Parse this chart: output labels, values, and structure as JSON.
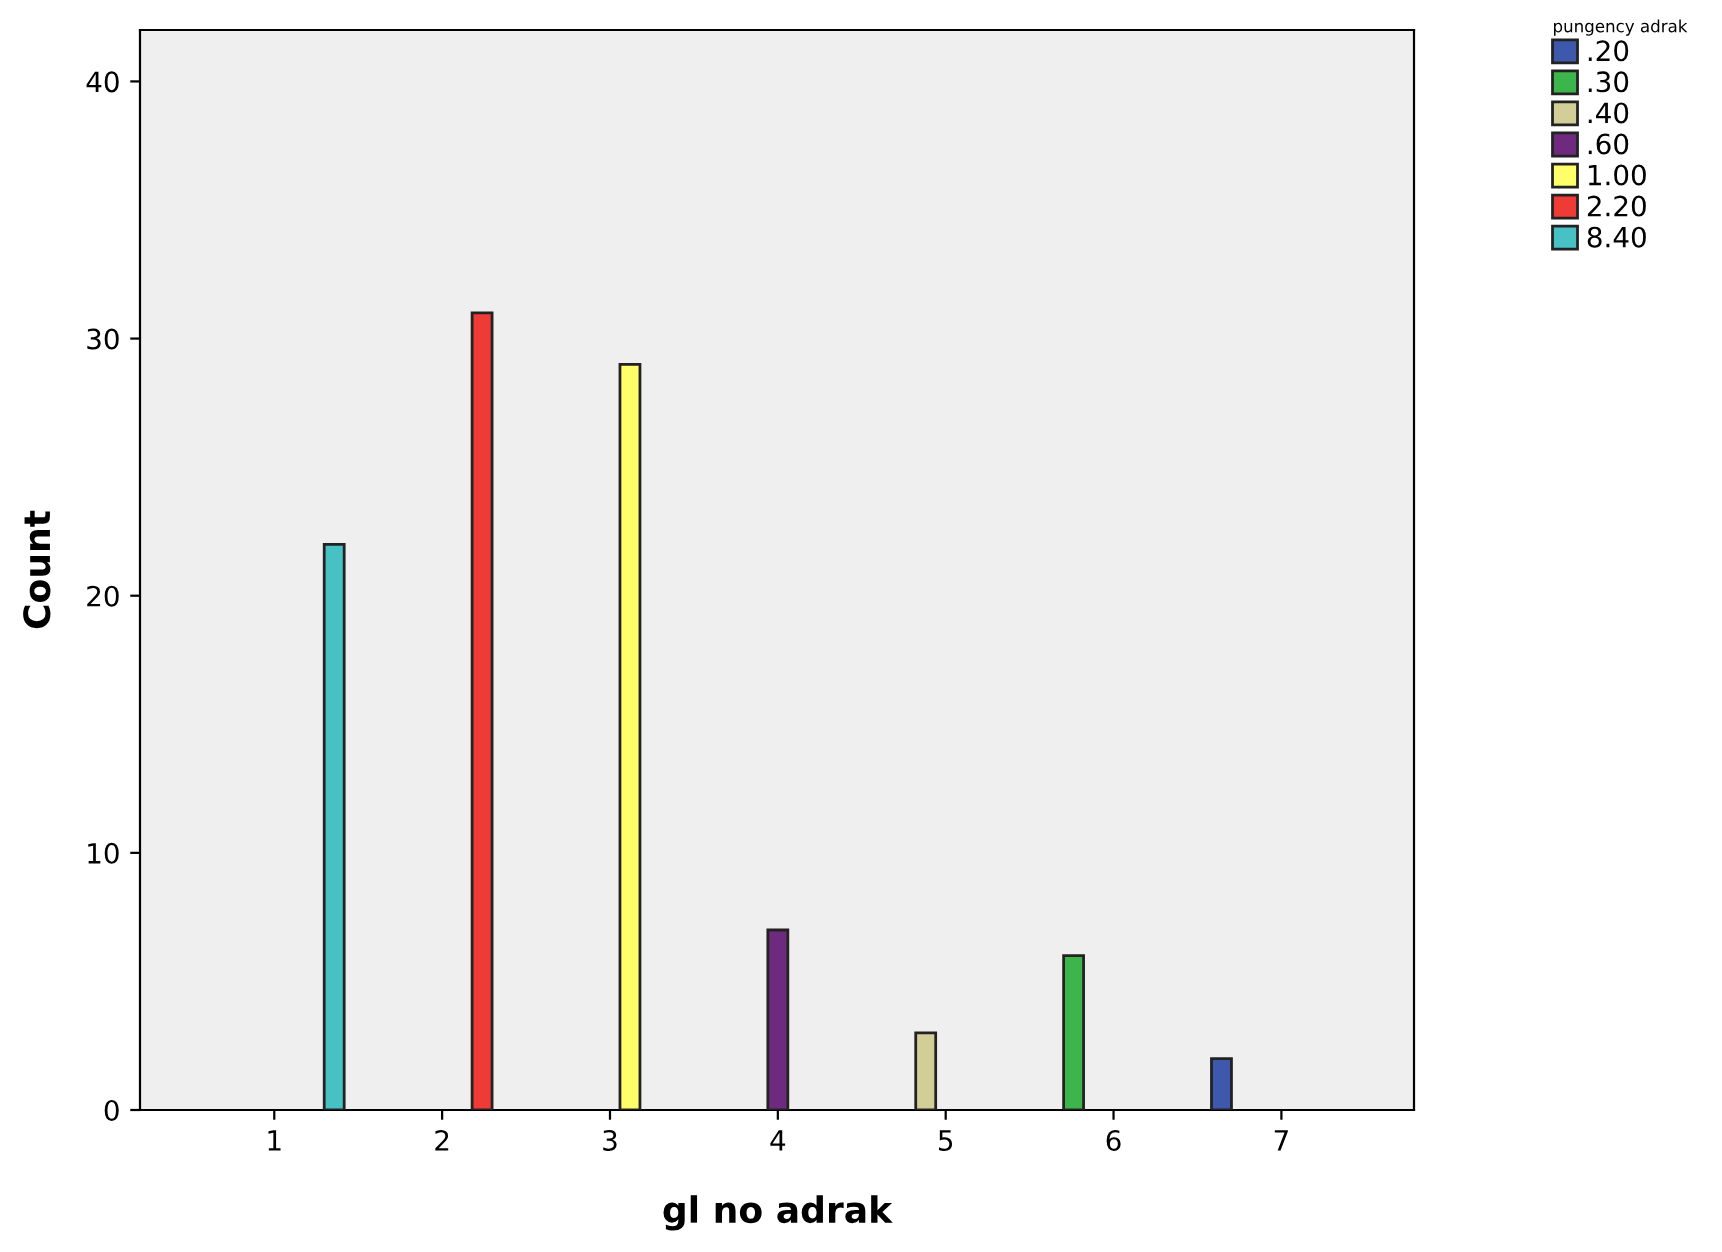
{
  "chart_data": {
    "type": "bar",
    "xlabel": "gl no adrak",
    "ylabel": "Count",
    "legend_title": "pungency adrak",
    "categories": [
      "1",
      "2",
      "3",
      "4",
      "5",
      "6",
      "7"
    ],
    "series": [
      {
        "name": ".20",
        "color": "#3e58ac",
        "values": [
          null,
          null,
          null,
          null,
          null,
          null,
          2
        ]
      },
      {
        "name": ".30",
        "color": "#3cb64a",
        "values": [
          null,
          null,
          null,
          null,
          null,
          6,
          null
        ]
      },
      {
        "name": ".40",
        "color": "#d3ce97",
        "values": [
          null,
          null,
          null,
          null,
          3,
          null,
          null
        ]
      },
      {
        "name": ".60",
        "color": "#6e2a7e",
        "values": [
          null,
          null,
          null,
          7,
          null,
          null,
          null
        ]
      },
      {
        "name": "1.00",
        "color": "#ffff6a",
        "values": [
          null,
          null,
          29,
          null,
          null,
          null,
          null
        ]
      },
      {
        "name": "2.20",
        "color": "#ef3b36",
        "values": [
          null,
          31,
          null,
          null,
          null,
          null,
          null
        ]
      },
      {
        "name": "8.40",
        "color": "#48c1c4",
        "values": [
          22,
          null,
          null,
          null,
          null,
          null,
          null
        ]
      }
    ],
    "ylim": [
      0,
      42
    ],
    "yticks": [
      0,
      10,
      20,
      30,
      40
    ],
    "grid": false,
    "legend": "top right"
  }
}
